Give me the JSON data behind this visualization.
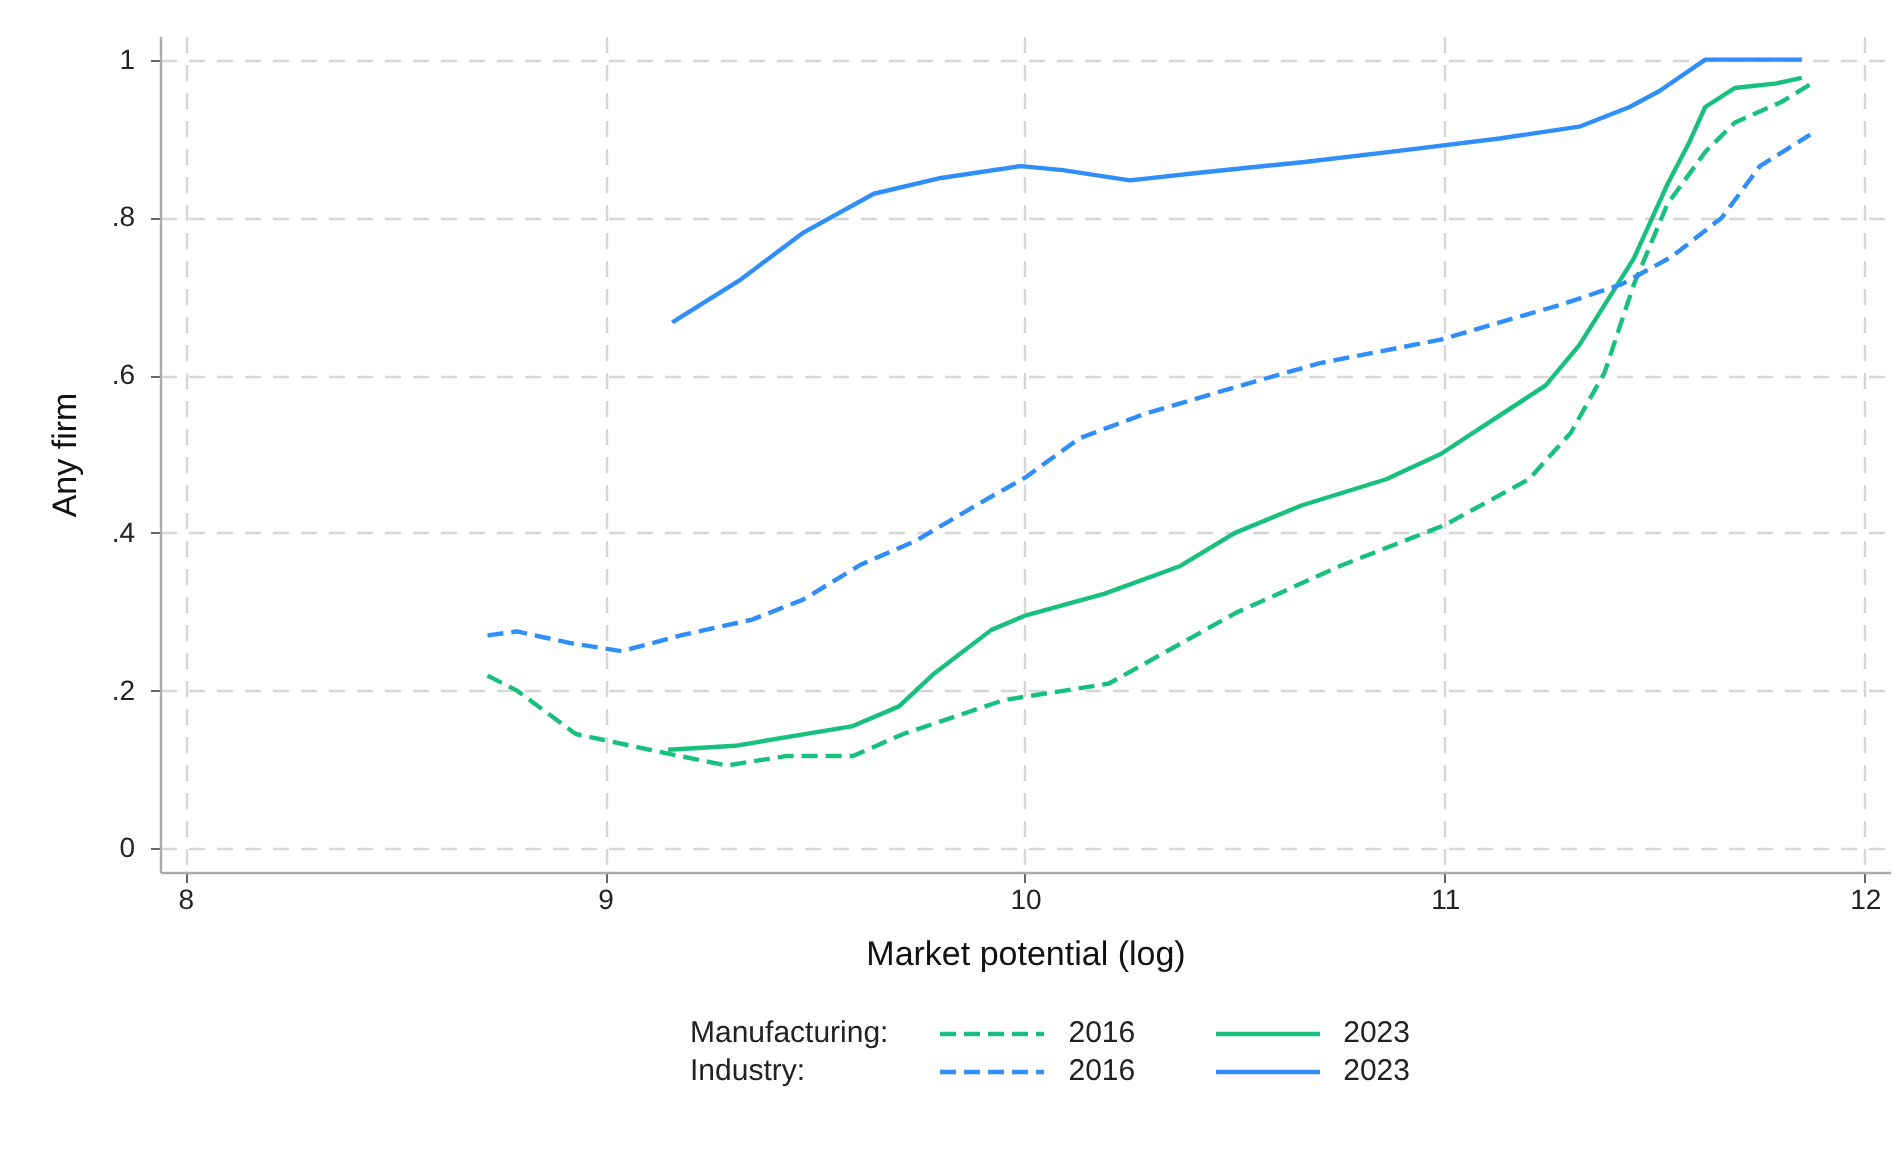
{
  "chart_data": {
    "type": "line",
    "xlabel": "Market potential (log)",
    "ylabel": "Any firm",
    "xlim": [
      7.94,
      12.06
    ],
    "xticks": [
      8,
      9,
      10,
      11,
      12
    ],
    "ylim": [
      -0.03,
      1.03
    ],
    "yticks": [
      {
        "value": 0,
        "label": "0"
      },
      {
        "value": 0.2,
        "label": ".2"
      },
      {
        "value": 0.4,
        "label": ".4"
      },
      {
        "value": 0.6,
        "label": ".6"
      },
      {
        "value": 0.8,
        "label": ".8"
      },
      {
        "value": 1,
        "label": "1"
      }
    ],
    "grid": true,
    "legend": "bottom",
    "annotations": [
      "Manufacturing:",
      "Industry:"
    ],
    "series": [
      {
        "name": "2016",
        "color": "#17c07e",
        "line_style": "dashed",
        "x": [
          8.72,
          8.79,
          8.93,
          9.15,
          9.29,
          9.43,
          9.59,
          9.71,
          9.95,
          10.2,
          10.5,
          10.75,
          11.0,
          11.2,
          11.3,
          11.38,
          11.45,
          11.53,
          11.62,
          11.69,
          11.8,
          11.88
        ],
        "values": [
          0.219,
          0.2,
          0.145,
          0.12,
          0.105,
          0.117,
          0.117,
          0.145,
          0.188,
          0.209,
          0.298,
          0.358,
          0.41,
          0.468,
          0.527,
          0.603,
          0.715,
          0.817,
          0.883,
          0.92,
          0.946,
          0.972
        ]
      },
      {
        "name": "2023",
        "color": "#17c07e",
        "line_style": "solid",
        "x": [
          9.15,
          9.31,
          9.59,
          9.7,
          9.78,
          9.92,
          10.0,
          10.19,
          10.37,
          10.5,
          10.66,
          10.86,
          10.99,
          11.24,
          11.32,
          11.45,
          11.53,
          11.58,
          11.62,
          11.69,
          11.79,
          11.85
        ],
        "values": [
          0.125,
          0.13,
          0.155,
          0.18,
          0.22,
          0.277,
          0.295,
          0.323,
          0.358,
          0.4,
          0.435,
          0.468,
          0.5,
          0.587,
          0.638,
          0.748,
          0.842,
          0.893,
          0.94,
          0.964,
          0.97,
          0.977
        ]
      },
      {
        "name": "2016",
        "color": "#2f8ef7",
        "line_style": "dashed",
        "x": [
          8.72,
          8.79,
          8.92,
          9.04,
          9.18,
          9.35,
          9.47,
          9.61,
          9.74,
          9.9,
          10.0,
          10.13,
          10.28,
          10.47,
          10.7,
          10.99,
          11.28,
          11.42,
          11.54,
          11.66,
          11.75,
          11.87
        ],
        "values": [
          0.27,
          0.275,
          0.26,
          0.25,
          0.27,
          0.29,
          0.315,
          0.36,
          0.39,
          0.44,
          0.47,
          0.52,
          0.55,
          0.58,
          0.615,
          0.645,
          0.69,
          0.715,
          0.75,
          0.8,
          0.865,
          0.905
        ]
      },
      {
        "name": "2023",
        "color": "#2f8ef7",
        "line_style": "solid",
        "x": [
          9.16,
          9.32,
          9.47,
          9.64,
          9.8,
          9.99,
          10.09,
          10.25,
          10.42,
          10.66,
          10.9,
          11.13,
          11.32,
          11.44,
          11.51,
          11.62,
          11.85
        ],
        "values": [
          0.667,
          0.72,
          0.78,
          0.83,
          0.85,
          0.865,
          0.86,
          0.847,
          0.857,
          0.87,
          0.885,
          0.9,
          0.915,
          0.94,
          0.96,
          1.0,
          1.0
        ]
      }
    ]
  }
}
